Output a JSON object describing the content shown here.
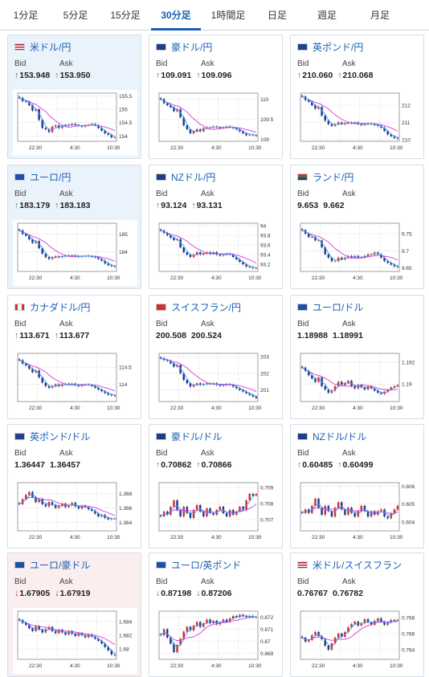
{
  "tabs": [
    {
      "label": "1分足",
      "active": false
    },
    {
      "label": "5分足",
      "active": false
    },
    {
      "label": "15分足",
      "active": false
    },
    {
      "label": "30分足",
      "active": true
    },
    {
      "label": "1時間足",
      "active": false
    },
    {
      "label": "日足",
      "active": false
    },
    {
      "label": "週足",
      "active": false
    },
    {
      "label": "月足",
      "active": false
    }
  ],
  "labels": {
    "bid": "Bid",
    "ask": "Ask"
  },
  "colors": {
    "accent": "#1a5fb4",
    "up": "#1a8a3a",
    "down": "#c62828",
    "candle_up": "#d32f2f",
    "candle_down": "#1e3c8c",
    "ma_short": "#3a9be8",
    "ma_long": "#d63ad6"
  },
  "pairs": [
    {
      "name": "米ドル/円",
      "flag": "us-jp-flag",
      "bg": "blue",
      "bid": "153.948",
      "ask": "153.950",
      "trend": "up",
      "chart_data": {
        "type": "candlestick",
        "x_ticks": [
          "22:30",
          "4:30",
          "10:30"
        ],
        "y_ticks": [
          "155.5",
          "155",
          "154.5",
          "154"
        ],
        "ylim": [
          153.8,
          155.6
        ],
        "close": [
          155.42,
          155.3,
          155.28,
          155.15,
          154.95,
          155.0,
          154.6,
          154.3,
          154.25,
          154.15,
          154.35,
          154.4,
          154.3,
          154.38,
          154.42,
          154.4,
          154.45,
          154.4,
          154.38,
          154.35,
          154.4,
          154.42,
          154.45,
          154.4,
          154.3,
          154.2,
          154.1,
          154.05,
          153.95,
          153.95
        ]
      }
    },
    {
      "name": "豪ドル/円",
      "flag": "au-jp-flag",
      "bg": "white",
      "bid": "109.091",
      "ask": "109.096",
      "trend": "up",
      "chart_data": {
        "type": "candlestick",
        "x_ticks": [
          "22:30",
          "4:30",
          "10:30"
        ],
        "y_ticks": [
          "110",
          "109.5",
          "109"
        ],
        "ylim": [
          108.95,
          110.15
        ],
        "close": [
          110.0,
          109.9,
          109.85,
          109.8,
          109.7,
          109.75,
          109.55,
          109.35,
          109.25,
          109.15,
          109.2,
          109.25,
          109.2,
          109.28,
          109.3,
          109.3,
          109.32,
          109.3,
          109.28,
          109.3,
          109.32,
          109.3,
          109.28,
          109.25,
          109.2,
          109.15,
          109.1,
          109.12,
          109.1,
          109.09
        ]
      }
    },
    {
      "name": "英ポンド/円",
      "flag": "gb-jp-flag",
      "bg": "white",
      "bid": "210.060",
      "ask": "210.068",
      "trend": "up",
      "chart_data": {
        "type": "candlestick",
        "x_ticks": [
          "22:30",
          "4:30",
          "10:30"
        ],
        "y_ticks": [
          "212",
          "211",
          "210"
        ],
        "ylim": [
          209.9,
          212.7
        ],
        "close": [
          212.5,
          212.3,
          212.2,
          212.0,
          211.8,
          211.9,
          211.4,
          211.1,
          210.9,
          210.8,
          210.9,
          211.0,
          210.9,
          210.95,
          211.0,
          210.95,
          211.0,
          210.9,
          210.85,
          210.9,
          210.95,
          210.9,
          210.85,
          210.8,
          210.7,
          210.5,
          210.3,
          210.2,
          210.1,
          210.06
        ]
      }
    },
    {
      "name": "ユーロ/円",
      "flag": "eu-jp-flag",
      "bg": "blue",
      "bid": "183.179",
      "ask": "183.183",
      "trend": "up",
      "chart_data": {
        "type": "candlestick",
        "x_ticks": [
          "22:30",
          "4:30",
          "10:30"
        ],
        "y_ticks": [
          "185",
          "184"
        ],
        "ylim": [
          182.9,
          185.6
        ],
        "close": [
          185.2,
          185.0,
          184.9,
          184.7,
          184.5,
          184.6,
          184.2,
          183.9,
          183.7,
          183.6,
          183.7,
          183.75,
          183.7,
          183.75,
          183.8,
          183.78,
          183.8,
          183.75,
          183.72,
          183.75,
          183.78,
          183.75,
          183.72,
          183.7,
          183.6,
          183.5,
          183.35,
          183.25,
          183.2,
          183.18
        ]
      }
    },
    {
      "name": "NZドル/円",
      "flag": "nz-jp-flag",
      "bg": "white",
      "bid": "93.124",
      "ask": "93.131",
      "trend": "up",
      "chart_data": {
        "type": "candlestick",
        "x_ticks": [
          "22:30",
          "4:30",
          "10:30"
        ],
        "y_ticks": [
          "94",
          "93.8",
          "93.6",
          "93.4",
          "93.2"
        ],
        "ylim": [
          93.05,
          94.05
        ],
        "close": [
          93.9,
          93.85,
          93.8,
          93.75,
          93.7,
          93.72,
          93.55,
          93.45,
          93.4,
          93.35,
          93.4,
          93.45,
          93.4,
          93.42,
          93.45,
          93.42,
          93.45,
          93.4,
          93.38,
          93.4,
          93.42,
          93.4,
          93.35,
          93.3,
          93.25,
          93.2,
          93.15,
          93.14,
          93.12,
          93.12
        ]
      }
    },
    {
      "name": "ランド/円",
      "flag": "za-jp-flag",
      "bg": "white",
      "bid": "9.653",
      "ask": "9.662",
      "trend": "none",
      "chart_data": {
        "type": "candlestick",
        "x_ticks": [
          "22:30",
          "4:30",
          "10:30"
        ],
        "y_ticks": [
          "9.75",
          "9.7",
          "9.65"
        ],
        "ylim": [
          9.64,
          9.78
        ],
        "close": [
          9.76,
          9.75,
          9.74,
          9.74,
          9.73,
          9.73,
          9.71,
          9.69,
          9.68,
          9.67,
          9.67,
          9.68,
          9.675,
          9.68,
          9.685,
          9.68,
          9.685,
          9.68,
          9.68,
          9.685,
          9.69,
          9.69,
          9.695,
          9.69,
          9.68,
          9.67,
          9.665,
          9.66,
          9.655,
          9.653
        ]
      }
    },
    {
      "name": "カナダドル/円",
      "flag": "ca-jp-flag",
      "bg": "white",
      "bid": "113.671",
      "ask": "113.677",
      "trend": "up",
      "chart_data": {
        "type": "candlestick",
        "x_ticks": [
          "22:30",
          "4:30",
          "10:30"
        ],
        "y_ticks": [
          "114.5",
          "114"
        ],
        "ylim": [
          113.5,
          114.9
        ],
        "close": [
          114.7,
          114.6,
          114.55,
          114.45,
          114.35,
          114.4,
          114.2,
          114.05,
          113.95,
          113.9,
          113.95,
          114.0,
          113.95,
          114.0,
          114.02,
          114.0,
          114.02,
          113.98,
          113.95,
          113.98,
          114.0,
          113.98,
          113.95,
          113.9,
          113.85,
          113.8,
          113.75,
          113.7,
          113.68,
          113.67
        ]
      }
    },
    {
      "name": "スイスフラン/円",
      "flag": "ch-jp-flag",
      "bg": "white",
      "bid": "200.508",
      "ask": "200.524",
      "trend": "none",
      "chart_data": {
        "type": "candlestick",
        "x_ticks": [
          "22:30",
          "4:30",
          "10:30"
        ],
        "y_ticks": [
          "203",
          "202",
          "201"
        ],
        "ylim": [
          200.3,
          203.2
        ],
        "close": [
          202.9,
          202.8,
          202.75,
          202.6,
          202.4,
          202.5,
          202.0,
          201.6,
          201.4,
          201.2,
          201.3,
          201.4,
          201.3,
          201.35,
          201.4,
          201.35,
          201.4,
          201.3,
          201.25,
          201.3,
          201.35,
          201.3,
          201.2,
          201.1,
          201.0,
          200.9,
          200.8,
          200.7,
          200.6,
          200.51
        ]
      }
    },
    {
      "name": "ユーロ/ドル",
      "flag": "eu-us-flag",
      "bg": "white",
      "bid": "1.18988",
      "ask": "1.18991",
      "trend": "none",
      "chart_data": {
        "type": "candlestick",
        "x_ticks": [
          "22:30",
          "4:30",
          "10:30"
        ],
        "y_ticks": [
          "1.192",
          "1.19"
        ],
        "ylim": [
          1.1884,
          1.1928
        ],
        "close": [
          1.1915,
          1.1912,
          1.1908,
          1.1905,
          1.1902,
          1.1906,
          1.1898,
          1.1895,
          1.1892,
          1.1894,
          1.1898,
          1.1902,
          1.1899,
          1.1901,
          1.1903,
          1.1898,
          1.1896,
          1.1899,
          1.1897,
          1.1895,
          1.1898,
          1.1896,
          1.1894,
          1.1892,
          1.1891,
          1.1893,
          1.1895,
          1.1897,
          1.1898,
          1.1899
        ]
      }
    },
    {
      "name": "英ポンド/ドル",
      "flag": "gb-us-flag",
      "bg": "white",
      "bid": "1.36447",
      "ask": "1.36457",
      "trend": "none",
      "chart_data": {
        "type": "candlestick",
        "x_ticks": [
          "22:30",
          "4:30",
          "10:30"
        ],
        "y_ticks": [
          "1.368",
          "1.366",
          "1.364"
        ],
        "ylim": [
          1.3628,
          1.3695
        ],
        "close": [
          1.3665,
          1.3672,
          1.3678,
          1.3682,
          1.3675,
          1.3668,
          1.3672,
          1.3665,
          1.3662,
          1.3668,
          1.3664,
          1.366,
          1.3663,
          1.3666,
          1.3661,
          1.3664,
          1.3667,
          1.3662,
          1.3659,
          1.3663,
          1.3661,
          1.3658,
          1.3656,
          1.3652,
          1.3648,
          1.365,
          1.3646,
          1.3644,
          1.3645,
          1.3645
        ]
      }
    },
    {
      "name": "豪ドル/ドル",
      "flag": "au-us-flag",
      "bg": "white",
      "bid": "0.70862",
      "ask": "0.70866",
      "trend": "up",
      "chart_data": {
        "type": "candlestick",
        "x_ticks": [
          "22:30",
          "4:30",
          "10:30"
        ],
        "y_ticks": [
          "0.709",
          "0.708",
          "0.707"
        ],
        "ylim": [
          0.7063,
          0.7093
        ],
        "close": [
          0.7072,
          0.7075,
          0.7073,
          0.7078,
          0.7082,
          0.7076,
          0.7072,
          0.7078,
          0.7074,
          0.7071,
          0.7076,
          0.7079,
          0.7075,
          0.7072,
          0.7077,
          0.7074,
          0.7073,
          0.7076,
          0.7078,
          0.7074,
          0.7072,
          0.7076,
          0.7073,
          0.7075,
          0.7078,
          0.7076,
          0.7082,
          0.7086,
          0.7085,
          0.7086
        ]
      }
    },
    {
      "name": "NZドル/ドル",
      "flag": "nz-us-flag",
      "bg": "white",
      "bid": "0.60485",
      "ask": "0.60499",
      "trend": "up",
      "chart_data": {
        "type": "candlestick",
        "x_ticks": [
          "22:30",
          "4:30",
          "10:30"
        ],
        "y_ticks": [
          "0.606",
          "0.605",
          "0.604"
        ],
        "ylim": [
          0.6035,
          0.6062
        ],
        "close": [
          0.6045,
          0.6047,
          0.6045,
          0.6049,
          0.6053,
          0.6048,
          0.6044,
          0.6049,
          0.6046,
          0.6043,
          0.6048,
          0.6051,
          0.6047,
          0.6044,
          0.6048,
          0.6045,
          0.6043,
          0.6046,
          0.6049,
          0.6046,
          0.6043,
          0.6046,
          0.6044,
          0.6046,
          0.6047,
          0.6043,
          0.6042,
          0.6045,
          0.6047,
          0.6049
        ]
      }
    },
    {
      "name": "ユーロ/豪ドル",
      "flag": "eu-au-flag",
      "bg": "pink",
      "bid": "1.67905",
      "ask": "1.67919",
      "trend": "down",
      "chart_data": {
        "type": "candlestick",
        "x_ticks": [
          "22:30",
          "4:30",
          "10:30"
        ],
        "y_ticks": [
          "1.684",
          "1.682",
          "1.68"
        ],
        "ylim": [
          1.6785,
          1.6855
        ],
        "close": [
          1.6842,
          1.6838,
          1.6835,
          1.683,
          1.6826,
          1.6833,
          1.6828,
          1.6824,
          1.6829,
          1.6832,
          1.6826,
          1.6823,
          1.6828,
          1.6824,
          1.6821,
          1.6826,
          1.6822,
          1.6819,
          1.6823,
          1.682,
          1.6817,
          1.6821,
          1.6818,
          1.6815,
          1.6812,
          1.6808,
          1.6803,
          1.6798,
          1.6792,
          1.6791
        ]
      }
    },
    {
      "name": "ユーロ/英ポンド",
      "flag": "eu-gb-flag",
      "bg": "white",
      "bid": "0.87198",
      "ask": "0.87206",
      "trend": "down",
      "chart_data": {
        "type": "candlestick",
        "x_ticks": [
          "22:30",
          "4:30",
          "10:30"
        ],
        "y_ticks": [
          "0.872",
          "0.871",
          "0.87",
          "0.869"
        ],
        "ylim": [
          0.8685,
          0.8725
        ],
        "close": [
          0.8705,
          0.871,
          0.8703,
          0.8698,
          0.8691,
          0.8697,
          0.8702,
          0.8708,
          0.8712,
          0.8709,
          0.8713,
          0.8716,
          0.8712,
          0.8715,
          0.8718,
          0.8715,
          0.8717,
          0.8714,
          0.8716,
          0.8718,
          0.8716,
          0.8719,
          0.8721,
          0.872,
          0.8722,
          0.8721,
          0.872,
          0.8721,
          0.872,
          0.872
        ]
      }
    },
    {
      "name": "米ドル/スイスフラン",
      "flag": "us-ch-flag",
      "bg": "white",
      "bid": "0.76767",
      "ask": "0.76782",
      "trend": "none",
      "chart_data": {
        "type": "candlestick",
        "x_ticks": [
          "22:30",
          "4:30",
          "10:30"
        ],
        "y_ticks": [
          "0.768",
          "0.766",
          "0.764"
        ],
        "ylim": [
          0.7628,
          0.7688
        ],
        "close": [
          0.7655,
          0.765,
          0.7652,
          0.7658,
          0.7662,
          0.7657,
          0.7653,
          0.7645,
          0.764,
          0.7648,
          0.7655,
          0.766,
          0.7656,
          0.7662,
          0.7668,
          0.7672,
          0.7675,
          0.767,
          0.7673,
          0.7678,
          0.7674,
          0.7671,
          0.7676,
          0.7679,
          0.7675,
          0.7671,
          0.7674,
          0.7677,
          0.7676,
          0.7677
        ]
      }
    }
  ]
}
